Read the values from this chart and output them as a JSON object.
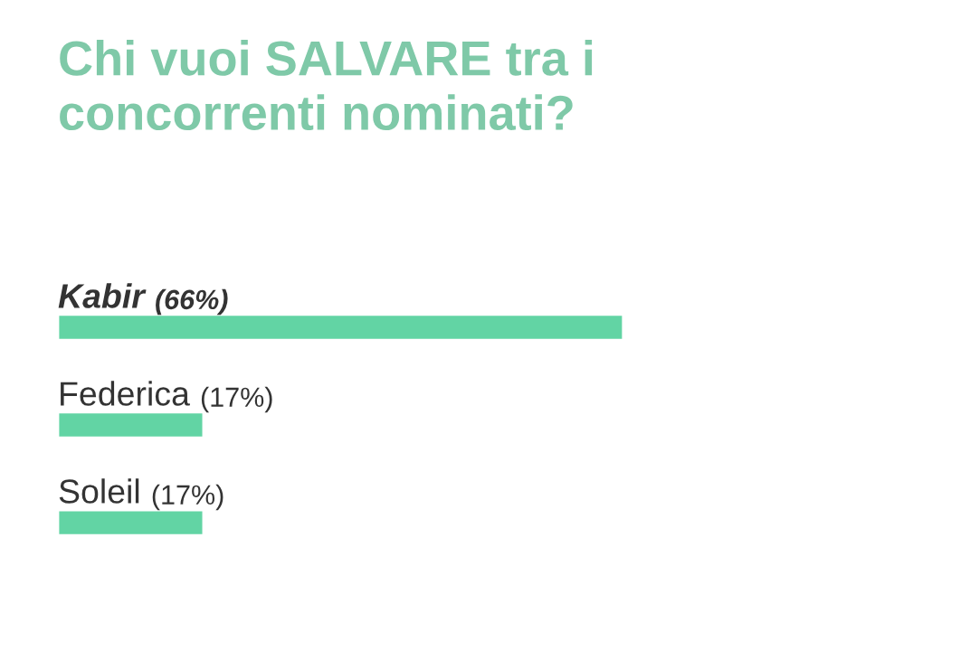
{
  "chart_data": {
    "type": "bar",
    "orientation": "horizontal",
    "title": "Chi vuoi SALVARE tra i\nconcorrenti nominati?",
    "categories": [
      "Kabir",
      "Federica",
      "Soleil"
    ],
    "values": [
      66,
      17,
      17
    ],
    "value_labels": [
      "(66%)",
      "(17%)",
      "(17%)"
    ],
    "color": "#62d4a4",
    "legend": false
  }
}
